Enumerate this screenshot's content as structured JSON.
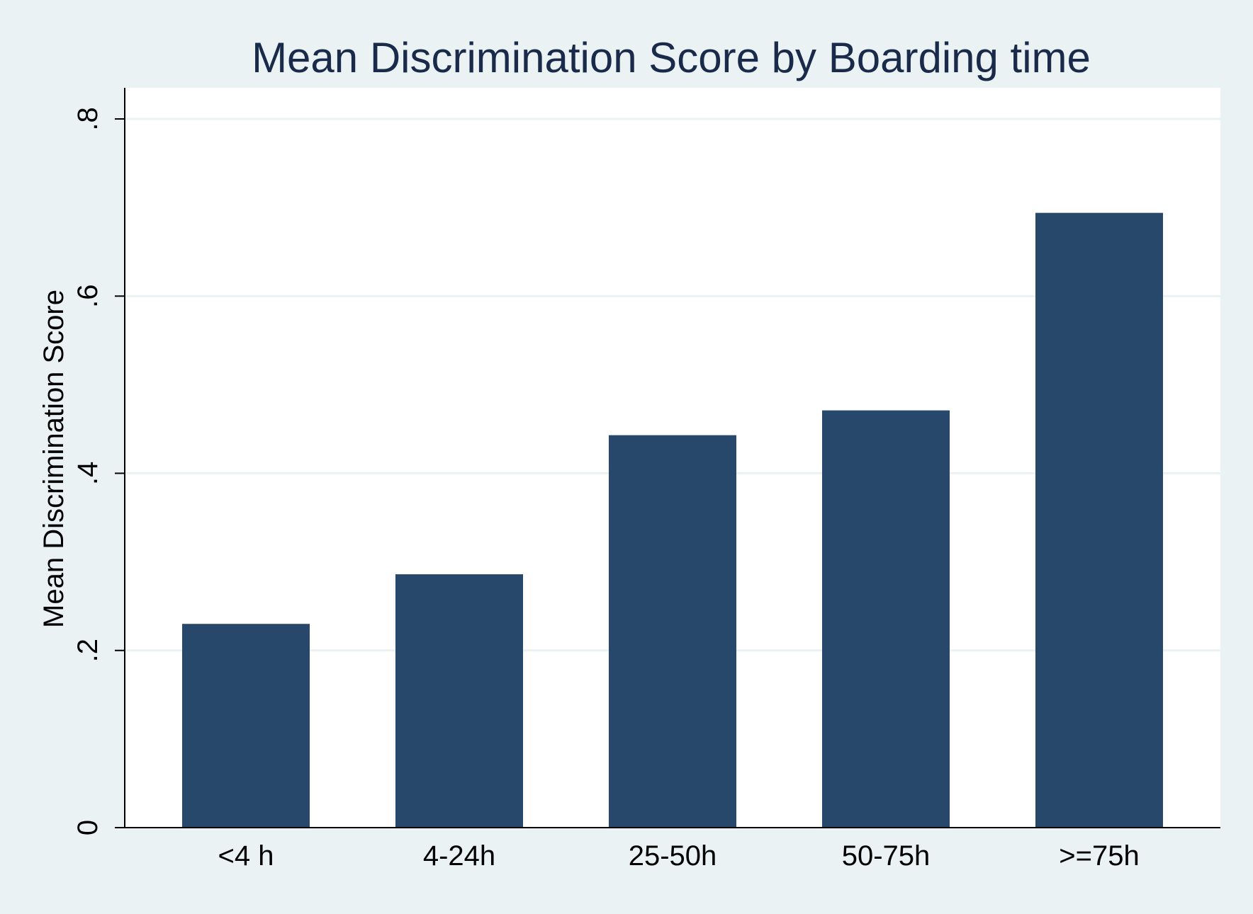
{
  "chart_data": {
    "type": "bar",
    "title": "Mean Discrimination Score by Boarding time",
    "xlabel": "",
    "ylabel": "Mean Discrimination Score",
    "categories": [
      "<4 h",
      "4-24h",
      "25-50h",
      "50-75h",
      ">=75h"
    ],
    "values": [
      0.23,
      0.286,
      0.443,
      0.471,
      0.694
    ],
    "ylim": [
      0,
      0.8
    ],
    "yticks": [
      0,
      0.2,
      0.4,
      0.6,
      0.8
    ],
    "ytick_labels": [
      "0",
      ".2",
      ".4",
      ".6",
      ".8"
    ],
    "grid": true,
    "bar_color": "#27476b",
    "plot_background": "#ffffff",
    "figure_background": "#eaf2f3",
    "gridline_color": "#eaf2f3"
  }
}
